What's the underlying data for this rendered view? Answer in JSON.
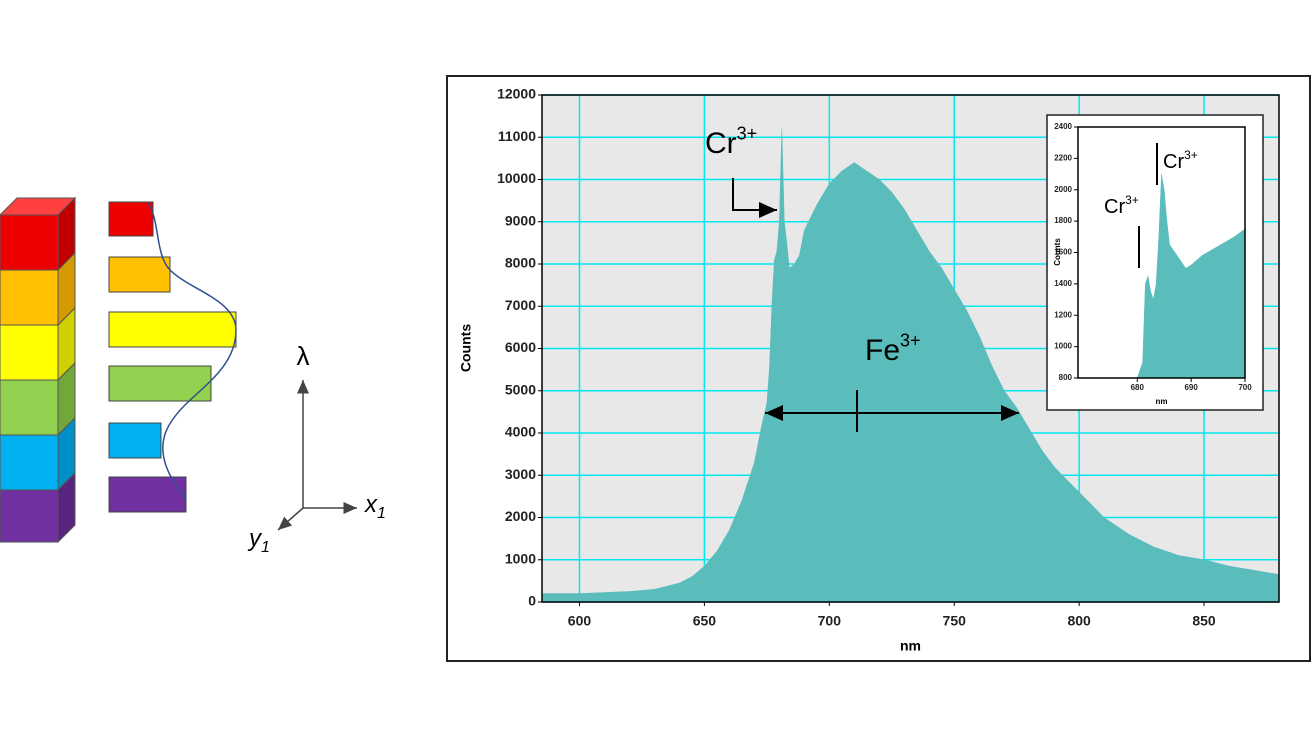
{
  "diagram": {
    "lambda": "λ",
    "x1": {
      "text": "x",
      "sub": "1"
    },
    "y1": {
      "text": "y",
      "sub": "1"
    }
  },
  "chart_data": [
    {
      "type": "area",
      "xlabel": "nm",
      "ylabel": "Counts",
      "color": "#5bbcbc",
      "grid": true,
      "xlim": [
        585,
        880
      ],
      "xticks": [
        600,
        650,
        700,
        750,
        800,
        850
      ],
      "ylim": [
        0,
        12000
      ],
      "yticks": [
        0,
        1000,
        2000,
        3000,
        4000,
        5000,
        6000,
        7000,
        8000,
        9000,
        10000,
        11000,
        12000
      ],
      "x": [
        585,
        600,
        620,
        630,
        640,
        645,
        650,
        655,
        660,
        665,
        670,
        673,
        675,
        676,
        677,
        678,
        679,
        680,
        681,
        682,
        683,
        684,
        686,
        688,
        690,
        695,
        700,
        705,
        710,
        715,
        720,
        725,
        730,
        735,
        740,
        745,
        750,
        755,
        760,
        765,
        770,
        775,
        780,
        785,
        790,
        795,
        800,
        810,
        820,
        830,
        840,
        850,
        860,
        870,
        880
      ],
      "values": [
        200,
        200,
        250,
        300,
        450,
        600,
        850,
        1200,
        1700,
        2400,
        3300,
        4200,
        4700,
        5500,
        7000,
        8100,
        8300,
        9000,
        11200,
        9000,
        8500,
        7900,
        8000,
        8200,
        8800,
        9400,
        9900,
        10200,
        10400,
        10200,
        10000,
        9700,
        9300,
        8800,
        8300,
        7900,
        7400,
        6900,
        6300,
        5600,
        5000,
        4600,
        4100,
        3600,
        3200,
        2900,
        2600,
        2000,
        1600,
        1300,
        1100,
        1000,
        850,
        750,
        650
      ],
      "annotations": [
        {
          "text": "Cr",
          "sup": "3+"
        },
        {
          "text": "Fe",
          "sup": "3+"
        }
      ]
    },
    {
      "type": "area",
      "xlabel": "nm",
      "ylabel": "Counts",
      "color": "#5bbcbc",
      "grid": false,
      "xlim": [
        669,
        700
      ],
      "xticks": [
        680,
        690,
        700
      ],
      "ylim": [
        800,
        2400
      ],
      "yticks": [
        800,
        1000,
        1200,
        1400,
        1600,
        1800,
        2000,
        2200,
        2400
      ],
      "x": [
        680,
        681,
        681.5,
        682,
        682.5,
        683,
        683.5,
        684,
        684.5,
        685,
        685.5,
        686,
        687,
        688,
        689,
        690,
        692,
        694,
        696,
        698,
        700
      ],
      "values": [
        800,
        900,
        1400,
        1450,
        1350,
        1300,
        1400,
        1700,
        2100,
        2000,
        1800,
        1650,
        1600,
        1550,
        1500,
        1520,
        1580,
        1620,
        1660,
        1700,
        1750
      ],
      "annotations": [
        {
          "text": "Cr",
          "sup": "3+"
        },
        {
          "text": "Cr",
          "sup": "3+"
        }
      ]
    }
  ]
}
